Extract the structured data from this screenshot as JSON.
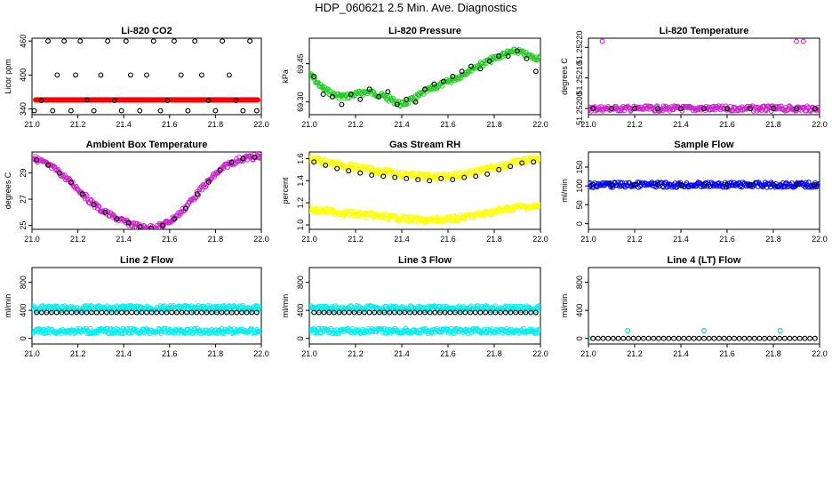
{
  "figure_title": "HDP_060621  2.5 Min. Ave. Diagnostics",
  "chart_data": [
    {
      "type": "scatter",
      "title": "Li-820 CO2",
      "ylabel": "Licor ppm",
      "xticks": [
        "21.0",
        "21.2",
        "21.4",
        "21.6",
        "21.8",
        "22.0"
      ],
      "yticks": [
        "340",
        "400",
        "460"
      ],
      "xlim": [
        21.0,
        22.0
      ],
      "ylim": [
        330,
        465
      ],
      "series": [
        {
          "name": "raw",
          "style": "line",
          "color": "#ff0000",
          "x": [
            21.0,
            22.0
          ],
          "y": [
            356,
            356
          ]
        },
        {
          "name": "average",
          "style": "circle",
          "color": "#000000",
          "x": [
            21.01,
            21.04,
            21.07,
            21.09,
            21.11,
            21.14,
            21.17,
            21.19,
            21.21,
            21.24,
            21.27,
            21.3,
            21.33,
            21.36,
            21.39,
            21.41,
            21.43,
            21.47,
            21.5,
            21.53,
            21.56,
            21.59,
            21.62,
            21.65,
            21.68,
            21.71,
            21.74,
            21.77,
            21.8,
            21.83,
            21.86,
            21.89,
            21.92,
            21.95,
            21.98
          ],
          "y": [
            337,
            355,
            460,
            337,
            400,
            460,
            337,
            400,
            460,
            356,
            337,
            400,
            460,
            355,
            337,
            460,
            400,
            337,
            400,
            460,
            337,
            355,
            460,
            400,
            337,
            460,
            400,
            355,
            337,
            460,
            400,
            355,
            337,
            460,
            337
          ]
        }
      ]
    },
    {
      "type": "scatter",
      "title": "Li-820 Pressure",
      "ylabel": "kPa",
      "xticks": [
        "21.0",
        "21.2",
        "21.4",
        "21.6",
        "21.8",
        "22.0"
      ],
      "yticks": [
        "69.30",
        "69.45"
      ],
      "xlim": [
        21.0,
        22.0
      ],
      "ylim": [
        69.25,
        69.55
      ],
      "series": [
        {
          "name": "raw",
          "style": "dense",
          "color": "#22cc22",
          "x": [
            21.0,
            21.05,
            21.1,
            21.15,
            21.2,
            21.25,
            21.3,
            21.35,
            21.4,
            21.45,
            21.5,
            21.55,
            21.6,
            21.65,
            21.7,
            21.75,
            21.8,
            21.85,
            21.9,
            21.95,
            22.0
          ],
          "y": [
            69.41,
            69.36,
            69.33,
            69.32,
            69.33,
            69.34,
            69.33,
            69.31,
            69.29,
            69.31,
            69.34,
            69.36,
            69.38,
            69.4,
            69.43,
            69.45,
            69.47,
            69.49,
            69.5,
            69.48,
            69.47
          ]
        },
        {
          "name": "average",
          "style": "circle",
          "color": "#000000",
          "x": [
            21.02,
            21.06,
            21.1,
            21.14,
            21.18,
            21.22,
            21.26,
            21.3,
            21.34,
            21.38,
            21.42,
            21.46,
            21.5,
            21.54,
            21.58,
            21.62,
            21.66,
            21.7,
            21.74,
            21.78,
            21.82,
            21.86,
            21.9,
            21.94,
            21.98
          ],
          "y": [
            69.4,
            69.33,
            69.32,
            69.29,
            69.33,
            69.31,
            69.35,
            69.32,
            69.34,
            69.29,
            69.31,
            69.3,
            69.35,
            69.37,
            69.38,
            69.4,
            69.42,
            69.44,
            69.43,
            69.46,
            69.48,
            69.48,
            69.5,
            69.47,
            69.42
          ]
        }
      ]
    },
    {
      "type": "scatter",
      "title": "Li-820 Temperature",
      "ylabel": "degrees C",
      "xticks": [
        "21.0",
        "21.2",
        "21.4",
        "21.6",
        "21.8",
        "22.0"
      ],
      "yticks": [
        "51.25200",
        "51.25210",
        "51.25220"
      ],
      "xlim": [
        21.0,
        22.0
      ],
      "ylim": [
        51.25198,
        51.25223
      ],
      "series": [
        {
          "name": "raw",
          "style": "dense",
          "color": "#cc22cc",
          "x": [
            21.0,
            22.0
          ],
          "y": [
            51.252,
            51.252
          ]
        },
        {
          "name": "outliers",
          "style": "circle",
          "color": "#cc22cc",
          "x": [
            21.06,
            21.9,
            21.93
          ],
          "y": [
            51.25222,
            51.25222,
            51.25222
          ]
        },
        {
          "name": "average",
          "style": "circle",
          "color": "#000000",
          "x": [
            21.02,
            21.1,
            21.2,
            21.3,
            21.4,
            21.5,
            21.6,
            21.7,
            21.8,
            21.9,
            21.98
          ],
          "y": [
            51.252,
            51.252,
            51.252,
            51.252,
            51.252,
            51.252,
            51.252,
            51.252,
            51.252,
            51.252,
            51.252
          ]
        }
      ]
    },
    {
      "type": "scatter",
      "title": "Ambient Box Temperature",
      "ylabel": "degrees C",
      "xticks": [
        "21.0",
        "21.2",
        "21.4",
        "21.6",
        "21.8",
        "22.0"
      ],
      "yticks": [
        "25",
        "27",
        "29"
      ],
      "xlim": [
        21.0,
        22.0
      ],
      "ylim": [
        24.7,
        30.6
      ],
      "series": [
        {
          "name": "raw",
          "style": "dense",
          "color": "#cc22cc",
          "x": [
            21.0,
            21.05,
            21.1,
            21.15,
            21.2,
            21.25,
            21.3,
            21.35,
            21.4,
            21.45,
            21.5,
            21.55,
            21.6,
            21.65,
            21.7,
            21.75,
            21.8,
            21.85,
            21.9,
            21.95,
            22.0
          ],
          "y": [
            30.2,
            29.8,
            29.3,
            28.6,
            27.8,
            26.9,
            26.2,
            25.7,
            25.3,
            25.0,
            24.8,
            24.9,
            25.3,
            26.0,
            27.0,
            28.0,
            28.9,
            29.6,
            30.0,
            30.2,
            30.2
          ]
        },
        {
          "name": "average",
          "style": "circle",
          "color": "#000000",
          "x": [
            21.02,
            21.07,
            21.12,
            21.17,
            21.22,
            21.27,
            21.32,
            21.37,
            21.42,
            21.47,
            21.52,
            21.57,
            21.62,
            21.67,
            21.72,
            21.77,
            21.82,
            21.87,
            21.92,
            21.97
          ],
          "y": [
            30.0,
            29.6,
            29.0,
            28.3,
            27.4,
            26.6,
            26.0,
            25.5,
            25.2,
            24.9,
            24.8,
            25.0,
            25.5,
            26.3,
            27.4,
            28.3,
            29.2,
            29.8,
            30.1,
            30.2
          ]
        }
      ]
    },
    {
      "type": "scatter",
      "title": "Gas Stream RH",
      "ylabel": "percent",
      "xticks": [
        "21.0",
        "21.2",
        "21.4",
        "21.6",
        "21.8",
        "22.0"
      ],
      "yticks": [
        "1.0",
        "1.2",
        "1.4",
        "1.6"
      ],
      "xlim": [
        21.0,
        22.0
      ],
      "ylim": [
        0.96,
        1.66
      ],
      "series": [
        {
          "name": "upper",
          "style": "dense",
          "color": "#ffff00",
          "x": [
            21.0,
            21.1,
            21.2,
            21.3,
            21.4,
            21.5,
            21.6,
            21.7,
            21.8,
            21.9,
            22.0
          ],
          "y": [
            1.6,
            1.56,
            1.52,
            1.49,
            1.46,
            1.44,
            1.44,
            1.47,
            1.52,
            1.57,
            1.61
          ]
        },
        {
          "name": "lower",
          "style": "dense",
          "color": "#ffff00",
          "x": [
            21.0,
            21.1,
            21.2,
            21.3,
            21.4,
            21.5,
            21.6,
            21.7,
            21.8,
            21.9,
            22.0
          ],
          "y": [
            1.14,
            1.12,
            1.1,
            1.08,
            1.06,
            1.04,
            1.05,
            1.08,
            1.12,
            1.16,
            1.17
          ]
        },
        {
          "name": "average",
          "style": "circle",
          "color": "#000000",
          "x": [
            21.02,
            21.07,
            21.12,
            21.17,
            21.22,
            21.27,
            21.32,
            21.37,
            21.42,
            21.47,
            21.52,
            21.57,
            21.62,
            21.67,
            21.72,
            21.77,
            21.82,
            21.87,
            21.92,
            21.97
          ],
          "y": [
            1.57,
            1.54,
            1.51,
            1.49,
            1.47,
            1.45,
            1.44,
            1.43,
            1.42,
            1.41,
            1.4,
            1.42,
            1.41,
            1.43,
            1.44,
            1.46,
            1.5,
            1.53,
            1.56,
            1.57
          ]
        }
      ]
    },
    {
      "type": "scatter",
      "title": "Sample Flow",
      "ylabel": "ml/min",
      "xticks": [
        "21.0",
        "21.2",
        "21.4",
        "21.6",
        "21.8",
        "22.0"
      ],
      "yticks": [
        "0",
        "50",
        "100",
        "150"
      ],
      "xlim": [
        21.0,
        22.0
      ],
      "ylim": [
        -15,
        190
      ],
      "series": [
        {
          "name": "raw",
          "style": "dense",
          "color": "#0000ee",
          "x": [
            21.0,
            22.0
          ],
          "y": [
            103,
            103
          ]
        },
        {
          "name": "average",
          "style": "circle",
          "color": "#000000",
          "x": [
            21.02,
            21.1,
            21.2,
            21.3,
            21.4,
            21.5,
            21.6,
            21.7,
            21.8,
            21.9,
            21.98
          ],
          "y": [
            104,
            103,
            103,
            104,
            103,
            104,
            103,
            103,
            104,
            103,
            103
          ]
        }
      ]
    },
    {
      "type": "scatter",
      "title": "Line 2 Flow",
      "ylabel": "ml/min",
      "xticks": [
        "21.0",
        "21.2",
        "21.4",
        "21.6",
        "21.8",
        "22.0"
      ],
      "yticks": [
        "0",
        "400",
        "800"
      ],
      "xlim": [
        21.0,
        22.0
      ],
      "ylim": [
        -80,
        1010
      ],
      "series": [
        {
          "name": "raw-high",
          "style": "dense",
          "color": "#00eeee",
          "x": [
            21.0,
            22.0
          ],
          "y": [
            430,
            430
          ]
        },
        {
          "name": "raw-low",
          "style": "dense",
          "color": "#00eeee",
          "x": [
            21.0,
            22.0
          ],
          "y": [
            105,
            105
          ]
        },
        {
          "name": "average",
          "style": "circle",
          "color": "#000000",
          "x": [
            21.02,
            21.98
          ],
          "y": [
            370,
            370
          ],
          "count": 45
        }
      ]
    },
    {
      "type": "scatter",
      "title": "Line 3 Flow",
      "ylabel": "ml/min",
      "xticks": [
        "21.0",
        "21.2",
        "21.4",
        "21.6",
        "21.8",
        "22.0"
      ],
      "yticks": [
        "0",
        "400",
        "800"
      ],
      "xlim": [
        21.0,
        22.0
      ],
      "ylim": [
        -80,
        1010
      ],
      "series": [
        {
          "name": "raw-high",
          "style": "dense",
          "color": "#00eeee",
          "x": [
            21.0,
            22.0
          ],
          "y": [
            430,
            430
          ]
        },
        {
          "name": "raw-low",
          "style": "dense",
          "color": "#00eeee",
          "x": [
            21.0,
            22.0
          ],
          "y": [
            105,
            105
          ]
        },
        {
          "name": "average",
          "style": "circle",
          "color": "#000000",
          "x": [
            21.02,
            21.98
          ],
          "y": [
            370,
            370
          ],
          "count": 45
        }
      ]
    },
    {
      "type": "scatter",
      "title": "Line 4 (LT) Flow",
      "ylabel": "ml/min",
      "xticks": [
        "21.0",
        "21.2",
        "21.4",
        "21.6",
        "21.8",
        "22.0"
      ],
      "yticks": [
        "0",
        "400",
        "800"
      ],
      "xlim": [
        21.0,
        22.0
      ],
      "ylim": [
        -80,
        1010
      ],
      "series": [
        {
          "name": "raw",
          "style": "circle",
          "color": "#00cccc",
          "x": [
            21.0,
            21.17,
            21.5,
            21.83
          ],
          "y": [
            0,
            110,
            110,
            110
          ]
        },
        {
          "name": "average",
          "style": "circle",
          "color": "#000000",
          "x": [
            21.02,
            21.98
          ],
          "y": [
            0,
            0
          ],
          "count": 45
        }
      ]
    }
  ]
}
